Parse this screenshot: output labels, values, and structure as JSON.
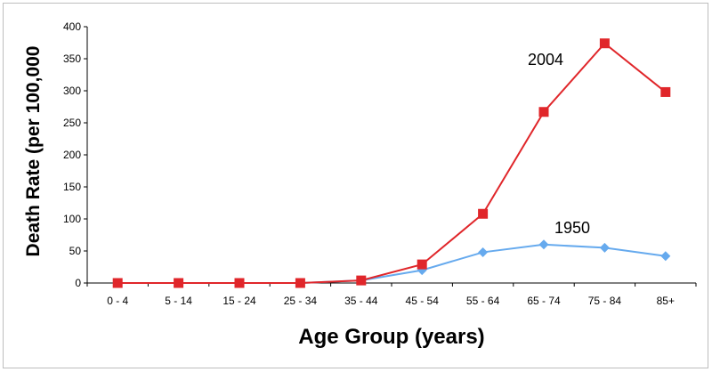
{
  "chart_data": {
    "type": "line",
    "title": "",
    "xlabel": "Age Group (years)",
    "ylabel": "Death Rate (per 100,000",
    "ylim": [
      0,
      400
    ],
    "yticks": [
      0,
      50,
      100,
      150,
      200,
      250,
      300,
      350,
      400
    ],
    "categories": [
      "0 - 4",
      "5 - 14",
      "15 - 24",
      "25 - 34",
      "35 - 44",
      "45 - 54",
      "55 - 64",
      "65 - 74",
      "75 - 84",
      "85+"
    ],
    "grid": false,
    "legend": "none",
    "series": [
      {
        "name": "1950",
        "color": "#66aaee",
        "marker": "diamond",
        "values": [
          0,
          0,
          0,
          0,
          4,
          20,
          48,
          60,
          55,
          42
        ]
      },
      {
        "name": "2004",
        "color": "#e0262a",
        "marker": "square",
        "values": [
          0,
          0,
          0,
          0,
          4,
          29,
          108,
          267,
          374,
          298
        ]
      }
    ]
  }
}
